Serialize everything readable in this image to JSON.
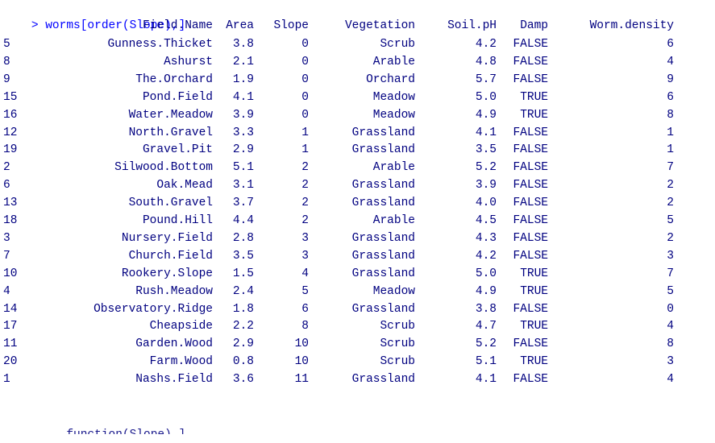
{
  "console": {
    "prompt": "> ",
    "command": "worms[order(Slope),]",
    "partial_next_line": "         function(Slope),]"
  },
  "table": {
    "headers": [
      "Field.Name",
      "Area",
      "Slope",
      "Vegetation",
      "Soil.pH",
      "Damp",
      "Worm.density"
    ],
    "rows": [
      [
        "5",
        "Gunness.Thicket",
        "3.8",
        "0",
        "Scrub",
        "4.2",
        "FALSE",
        "6"
      ],
      [
        "8",
        "Ashurst",
        "2.1",
        "0",
        "Arable",
        "4.8",
        "FALSE",
        "4"
      ],
      [
        "9",
        "The.Orchard",
        "1.9",
        "0",
        "Orchard",
        "5.7",
        "FALSE",
        "9"
      ],
      [
        "15",
        "Pond.Field",
        "4.1",
        "0",
        "Meadow",
        "5.0",
        "TRUE",
        "6"
      ],
      [
        "16",
        "Water.Meadow",
        "3.9",
        "0",
        "Meadow",
        "4.9",
        "TRUE",
        "8"
      ],
      [
        "12",
        "North.Gravel",
        "3.3",
        "1",
        "Grassland",
        "4.1",
        "FALSE",
        "1"
      ],
      [
        "19",
        "Gravel.Pit",
        "2.9",
        "1",
        "Grassland",
        "3.5",
        "FALSE",
        "1"
      ],
      [
        "2",
        "Silwood.Bottom",
        "5.1",
        "2",
        "Arable",
        "5.2",
        "FALSE",
        "7"
      ],
      [
        "6",
        "Oak.Mead",
        "3.1",
        "2",
        "Grassland",
        "3.9",
        "FALSE",
        "2"
      ],
      [
        "13",
        "South.Gravel",
        "3.7",
        "2",
        "Grassland",
        "4.0",
        "FALSE",
        "2"
      ],
      [
        "18",
        "Pound.Hill",
        "4.4",
        "2",
        "Arable",
        "4.5",
        "FALSE",
        "5"
      ],
      [
        "3",
        "Nursery.Field",
        "2.8",
        "3",
        "Grassland",
        "4.3",
        "FALSE",
        "2"
      ],
      [
        "7",
        "Church.Field",
        "3.5",
        "3",
        "Grassland",
        "4.2",
        "FALSE",
        "3"
      ],
      [
        "10",
        "Rookery.Slope",
        "1.5",
        "4",
        "Grassland",
        "5.0",
        "TRUE",
        "7"
      ],
      [
        "4",
        "Rush.Meadow",
        "2.4",
        "5",
        "Meadow",
        "4.9",
        "TRUE",
        "5"
      ],
      [
        "14",
        "Observatory.Ridge",
        "1.8",
        "6",
        "Grassland",
        "3.8",
        "FALSE",
        "0"
      ],
      [
        "17",
        "Cheapside",
        "2.2",
        "8",
        "Scrub",
        "4.7",
        "TRUE",
        "4"
      ],
      [
        "11",
        "Garden.Wood",
        "2.9",
        "10",
        "Scrub",
        "5.2",
        "FALSE",
        "8"
      ],
      [
        "20",
        "Farm.Wood",
        "0.8",
        "10",
        "Scrub",
        "5.1",
        "TRUE",
        "3"
      ],
      [
        "1",
        "Nashs.Field",
        "3.6",
        "11",
        "Grassland",
        "4.1",
        "FALSE",
        "4"
      ]
    ]
  },
  "colors": {
    "command": "#0000ff",
    "output": "#000080",
    "background": "#ffffff"
  }
}
